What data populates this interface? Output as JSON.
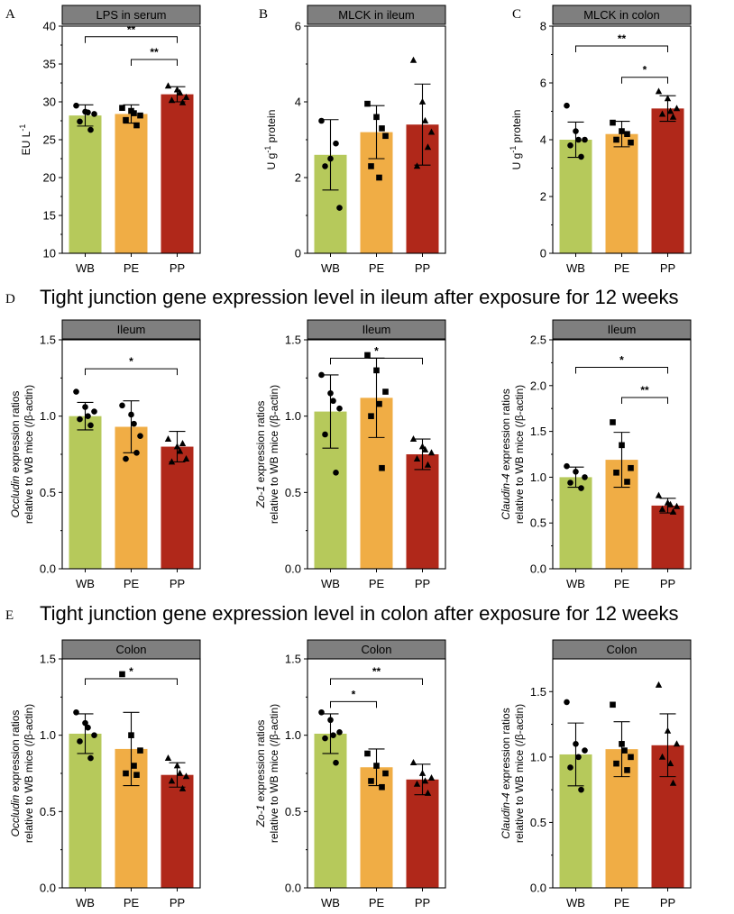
{
  "section_titles": {
    "D": "Tight junction gene expression level in ileum after exposure for 12 weeks",
    "E": "Tight junction gene expression level in colon after exposure for 12 weeks"
  },
  "group_colors": {
    "WB": "#b6c95b",
    "PE": "#f0ad45",
    "PP": "#b0281a"
  },
  "chart_data": [
    {
      "id": "A",
      "letter": "A",
      "type": "bar",
      "header": "LPS in serum",
      "ylabel": {
        "lines": [
          [
            "EU L",
            "-1",
            ""
          ]
        ]
      },
      "ylim": [
        10,
        40
      ],
      "yticks": [
        "10",
        "15",
        "20",
        "25",
        "30",
        "35",
        "40"
      ],
      "categories": [
        "WB",
        "PE",
        "PP"
      ],
      "values": [
        28.2,
        28.4,
        31.0
      ],
      "errors": [
        1.4,
        1.2,
        1.0
      ],
      "markers": [
        "circle",
        "square",
        "triangle"
      ],
      "points": [
        [
          29.5,
          28.7,
          28.4,
          27.4,
          26.3,
          28.6
        ],
        [
          29.2,
          28.8,
          28.2,
          27.6,
          26.9,
          28.5
        ],
        [
          32.1,
          31.6,
          30.6,
          30.2,
          29.9,
          31.2
        ]
      ],
      "significance": [
        {
          "from": 0,
          "to": 2,
          "label": "**",
          "y": 38.6
        },
        {
          "from": 1,
          "to": 2,
          "label": "**",
          "y": 35.6
        }
      ]
    },
    {
      "id": "B",
      "letter": "B",
      "type": "bar",
      "header": "MLCK in ileum",
      "ylabel": {
        "lines": [
          [
            "U g",
            "-1",
            " protein"
          ]
        ]
      },
      "ylim": [
        0,
        6
      ],
      "yticks": [
        "0",
        "2",
        "4",
        "6"
      ],
      "categories": [
        "WB",
        "PE",
        "PP"
      ],
      "values": [
        2.6,
        3.2,
        3.4
      ],
      "errors": [
        0.93,
        0.7,
        1.07
      ],
      "markers": [
        "circle",
        "square",
        "triangle"
      ],
      "points": [
        [
          3.5,
          2.5,
          1.2,
          2.3,
          2.9
        ],
        [
          3.95,
          3.6,
          3.1,
          2.3,
          3.3,
          2.0
        ],
        [
          5.1,
          4.0,
          3.2,
          2.3,
          2.8,
          3.5
        ]
      ],
      "significance": []
    },
    {
      "id": "C",
      "letter": "C",
      "type": "bar",
      "header": "MLCK in colon",
      "ylabel": {
        "lines": [
          [
            "U g",
            "-1",
            " protein"
          ]
        ]
      },
      "ylim": [
        0,
        8
      ],
      "yticks": [
        "0",
        "2",
        "4",
        "6",
        "8"
      ],
      "categories": [
        "WB",
        "PE",
        "PP"
      ],
      "values": [
        4.0,
        4.2,
        5.1
      ],
      "errors": [
        0.62,
        0.45,
        0.45
      ],
      "markers": [
        "circle",
        "square",
        "triangle"
      ],
      "points": [
        [
          5.2,
          4.3,
          4.0,
          3.8,
          3.4,
          4.0
        ],
        [
          4.6,
          4.3,
          3.9,
          4.0,
          4.2
        ],
        [
          5.7,
          5.45,
          5.1,
          4.9,
          4.8,
          5.0
        ]
      ],
      "significance": [
        {
          "from": 0,
          "to": 2,
          "label": "**",
          "y": 7.3
        },
        {
          "from": 1,
          "to": 2,
          "label": "*",
          "y": 6.2
        }
      ]
    },
    {
      "id": "D1",
      "letter": "D",
      "type": "bar",
      "header": "Ileum",
      "ylabel": {
        "lines": [
          [
            "",
            "",
            ""
          ]
        ],
        "italic": "Occludin",
        "rest": " expression ratios",
        "line2": "relative to WB mice (/β-actin)"
      },
      "ylim": [
        0,
        1.5
      ],
      "yticks": [
        "0.0",
        "0.5",
        "1.0",
        "1.5"
      ],
      "categories": [
        "WB",
        "PE",
        "PP"
      ],
      "values": [
        1.0,
        0.93,
        0.8
      ],
      "errors": [
        0.09,
        0.17,
        0.1
      ],
      "markers": [
        "circle",
        "circle",
        "triangle"
      ],
      "points": [
        [
          1.16,
          1.06,
          1.03,
          0.98,
          0.94,
          1.0
        ],
        [
          1.07,
          1.01,
          0.87,
          0.72,
          0.76,
          0.95
        ],
        [
          0.85,
          0.8,
          0.72,
          0.7,
          0.82,
          0.77
        ]
      ],
      "significance": [
        {
          "from": 0,
          "to": 2,
          "label": "*",
          "y": 1.31
        }
      ]
    },
    {
      "id": "D2",
      "letter": "",
      "type": "bar",
      "header": "Ileum",
      "ylabel": {
        "italic": "Zo-1",
        "rest": " expression ratios",
        "line2": "relative to WB mice (/β-actin)"
      },
      "ylim": [
        0,
        1.5
      ],
      "yticks": [
        "0.0",
        "0.5",
        "1.0",
        "1.5"
      ],
      "categories": [
        "WB",
        "PE",
        "PP"
      ],
      "values": [
        1.03,
        1.12,
        0.75
      ],
      "errors": [
        0.24,
        0.26,
        0.1
      ],
      "markers": [
        "circle",
        "square",
        "triangle"
      ],
      "points": [
        [
          1.27,
          1.15,
          1.05,
          0.88,
          0.63,
          1.1
        ],
        [
          1.4,
          1.3,
          1.16,
          1.0,
          0.66,
          1.08
        ],
        [
          0.85,
          0.8,
          0.76,
          0.72,
          0.68,
          0.78
        ]
      ],
      "significance": [
        {
          "from": 0,
          "to": 2,
          "label": "*",
          "y": 1.38
        }
      ]
    },
    {
      "id": "D3",
      "letter": "",
      "type": "bar",
      "header": "Ileum",
      "ylabel": {
        "italic": "Claudin-4",
        "rest": " expression ratios",
        "line2": "relative to WB mice (/β-actin)"
      },
      "ylim": [
        0,
        2.5
      ],
      "yticks": [
        "0.0",
        "0.5",
        "1.0",
        "1.5",
        "2.0",
        "2.5"
      ],
      "categories": [
        "WB",
        "PE",
        "PP"
      ],
      "values": [
        1.0,
        1.19,
        0.69
      ],
      "errors": [
        0.11,
        0.3,
        0.08
      ],
      "markers": [
        "circle",
        "square",
        "triangle"
      ],
      "points": [
        [
          1.12,
          1.06,
          1.0,
          0.94,
          0.88
        ],
        [
          1.6,
          1.35,
          1.1,
          1.05,
          0.95
        ],
        [
          0.8,
          0.72,
          0.68,
          0.65,
          0.62,
          0.7
        ]
      ],
      "significance": [
        {
          "from": 0,
          "to": 2,
          "label": "*",
          "y": 2.2
        },
        {
          "from": 1,
          "to": 2,
          "label": "**",
          "y": 1.87
        }
      ]
    },
    {
      "id": "E1",
      "letter": "E",
      "type": "bar",
      "header": "Colon",
      "ylabel": {
        "italic": "Occludin",
        "rest": " expression ratios",
        "line2": "relative to WB mice (/β-actin)"
      },
      "ylim": [
        0,
        1.5
      ],
      "yticks": [
        "0.0",
        "0.5",
        "1.0",
        "1.5"
      ],
      "categories": [
        "WB",
        "PE",
        "PP"
      ],
      "values": [
        1.01,
        0.91,
        0.74
      ],
      "errors": [
        0.13,
        0.24,
        0.08
      ],
      "markers": [
        "circle",
        "square",
        "triangle"
      ],
      "points": [
        [
          1.15,
          1.08,
          1.0,
          0.96,
          0.85,
          1.05
        ],
        [
          1.4,
          1.0,
          0.9,
          0.75,
          0.74,
          0.8
        ],
        [
          0.85,
          0.8,
          0.73,
          0.7,
          0.65,
          0.75
        ]
      ],
      "significance": [
        {
          "from": 0,
          "to": 2,
          "label": "*",
          "y": 1.37
        }
      ]
    },
    {
      "id": "E2",
      "letter": "",
      "type": "bar",
      "header": "Colon",
      "ylabel": {
        "italic": "Zo-1",
        "rest": " expression ratios",
        "line2": "relative to WB mice (/β-actin)"
      },
      "ylim": [
        0,
        1.5
      ],
      "yticks": [
        "0.0",
        "0.5",
        "1.0",
        "1.5"
      ],
      "categories": [
        "WB",
        "PE",
        "PP"
      ],
      "values": [
        1.01,
        0.79,
        0.71
      ],
      "errors": [
        0.13,
        0.12,
        0.1
      ],
      "markers": [
        "circle",
        "square",
        "triangle"
      ],
      "points": [
        [
          1.15,
          1.1,
          1.02,
          0.98,
          0.82,
          1.0
        ],
        [
          0.88,
          0.8,
          0.75,
          0.7,
          0.66
        ],
        [
          0.82,
          0.75,
          0.72,
          0.68,
          0.62,
          0.7
        ]
      ],
      "significance": [
        {
          "from": 0,
          "to": 2,
          "label": "**",
          "y": 1.37
        },
        {
          "from": 0,
          "to": 1,
          "label": "*",
          "y": 1.22
        }
      ]
    },
    {
      "id": "E3",
      "letter": "",
      "type": "bar",
      "header": "Colon",
      "ylabel": {
        "italic": "Claudin-4",
        "rest": " expression ratios",
        "line2": "relative to WB mice (/β-actin)"
      },
      "ylim": [
        0,
        1.75
      ],
      "yticks": [
        "0.0",
        "0.5",
        "1.0",
        "1.5"
      ],
      "categories": [
        "WB",
        "PE",
        "PP"
      ],
      "values": [
        1.02,
        1.06,
        1.09
      ],
      "errors": [
        0.24,
        0.21,
        0.24
      ],
      "markers": [
        "circle",
        "square",
        "triangle"
      ],
      "points": [
        [
          1.42,
          1.1,
          1.05,
          0.92,
          0.75,
          1.0
        ],
        [
          1.4,
          1.1,
          1.0,
          0.95,
          0.9,
          1.05
        ],
        [
          1.55,
          1.2,
          1.1,
          1.0,
          0.8,
          0.95
        ]
      ],
      "significance": []
    }
  ]
}
